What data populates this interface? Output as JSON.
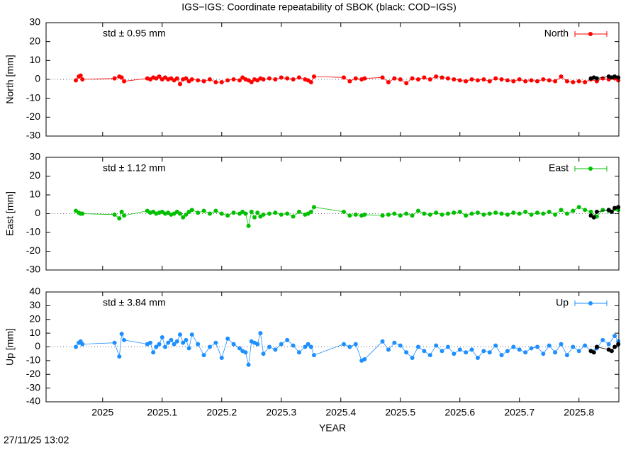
{
  "title": "IGS−IGS: Coordinate repeatability of SBOK (black: COD−IGS)",
  "footer": "27/11/25 13:02",
  "chart_data": [
    {
      "type": "line",
      "ylabel": "North [mm]",
      "annotation": "std ± 0.95 mm",
      "xlim": [
        2024.905,
        2025.867
      ],
      "xticks": [
        2025,
        2025.1,
        2025.2,
        2025.3,
        2025.4,
        2025.5,
        2025.6,
        2025.7,
        2025.8
      ],
      "ylim": [
        -30,
        30
      ],
      "yticks": [
        -30,
        -20,
        -10,
        0,
        10,
        20,
        30
      ],
      "series": [
        {
          "name": "North",
          "color": "#ff0000",
          "x": [
            2024.955,
            2024.96,
            2024.963,
            2024.966,
            2025.02,
            2025.028,
            2025.032,
            2025.036,
            2025.075,
            2025.08,
            2025.085,
            2025.09,
            2025.095,
            2025.1,
            2025.105,
            2025.11,
            2025.115,
            2025.12,
            2025.125,
            2025.13,
            2025.135,
            2025.14,
            2025.145,
            2025.15,
            2025.16,
            2025.17,
            2025.18,
            2025.19,
            2025.2,
            2025.21,
            2025.22,
            2025.23,
            2025.235,
            2025.24,
            2025.245,
            2025.25,
            2025.255,
            2025.26,
            2025.265,
            2025.27,
            2025.28,
            2025.29,
            2025.3,
            2025.31,
            2025.32,
            2025.33,
            2025.34,
            2025.345,
            2025.35,
            2025.355,
            2025.405,
            2025.415,
            2025.425,
            2025.435,
            2025.44,
            2025.47,
            2025.48,
            2025.49,
            2025.5,
            2025.51,
            2025.52,
            2025.53,
            2025.54,
            2025.55,
            2025.56,
            2025.57,
            2025.58,
            2025.59,
            2025.6,
            2025.61,
            2025.62,
            2025.63,
            2025.64,
            2025.65,
            2025.66,
            2025.67,
            2025.68,
            2025.69,
            2025.7,
            2025.71,
            2025.72,
            2025.73,
            2025.74,
            2025.75,
            2025.76,
            2025.77,
            2025.78,
            2025.79,
            2025.8,
            2025.81,
            2025.82,
            2025.83,
            2025.84,
            2025.85,
            2025.86,
            2025.866
          ],
          "values": [
            -0.5,
            1.5,
            2,
            0,
            0.5,
            1.5,
            1,
            -1,
            0.5,
            0,
            1,
            0.5,
            1.5,
            0,
            1,
            0,
            0.5,
            -0.5,
            0.5,
            -2.5,
            0,
            0.5,
            -1,
            0,
            -0.5,
            -1,
            0,
            -1.5,
            -1.5,
            -0.5,
            0,
            -0.5,
            1,
            0,
            -0.5,
            -1.5,
            0,
            -0.5,
            0.5,
            0,
            0.5,
            0,
            1,
            0.5,
            0,
            1,
            0,
            -0.5,
            -1.5,
            1.5,
            1,
            -1,
            0.5,
            0,
            0.5,
            1,
            -1.5,
            0.5,
            0,
            -2,
            0.5,
            0,
            1,
            0,
            1.5,
            1,
            0.5,
            0,
            -0.5,
            -1,
            0,
            -0.5,
            0,
            -1,
            0.5,
            0,
            -0.5,
            -1,
            0,
            -1,
            -0.5,
            -1,
            0,
            -0.5,
            -1,
            1.5,
            -1,
            -1.5,
            -1,
            -1.5,
            0,
            -1,
            0.5,
            0,
            0.5,
            -0.5
          ]
        },
        {
          "color": "#000000",
          "x": [
            2025.82,
            2025.825,
            2025.83,
            2025.85,
            2025.855,
            2025.86,
            2025.866
          ],
          "values": [
            0.5,
            1,
            0.5,
            1.5,
            1,
            1.5,
            1
          ]
        }
      ]
    },
    {
      "type": "line",
      "ylabel": "East [mm]",
      "annotation": "std ± 1.12 mm",
      "xlim": [
        2024.905,
        2025.867
      ],
      "xticks": [
        2025,
        2025.1,
        2025.2,
        2025.3,
        2025.4,
        2025.5,
        2025.6,
        2025.7,
        2025.8
      ],
      "ylim": [
        -30,
        30
      ],
      "yticks": [
        -30,
        -20,
        -10,
        0,
        10,
        20,
        30
      ],
      "series": [
        {
          "name": "East",
          "color": "#00c000",
          "x": [
            2024.955,
            2024.96,
            2024.963,
            2024.966,
            2025.02,
            2025.028,
            2025.032,
            2025.036,
            2025.075,
            2025.08,
            2025.085,
            2025.09,
            2025.095,
            2025.1,
            2025.105,
            2025.11,
            2025.115,
            2025.12,
            2025.125,
            2025.13,
            2025.135,
            2025.14,
            2025.145,
            2025.15,
            2025.16,
            2025.17,
            2025.18,
            2025.19,
            2025.2,
            2025.21,
            2025.22,
            2025.23,
            2025.235,
            2025.24,
            2025.245,
            2025.25,
            2025.255,
            2025.26,
            2025.265,
            2025.27,
            2025.28,
            2025.29,
            2025.3,
            2025.31,
            2025.32,
            2025.33,
            2025.34,
            2025.345,
            2025.35,
            2025.355,
            2025.405,
            2025.415,
            2025.425,
            2025.435,
            2025.44,
            2025.47,
            2025.48,
            2025.49,
            2025.5,
            2025.51,
            2025.52,
            2025.53,
            2025.54,
            2025.55,
            2025.56,
            2025.57,
            2025.58,
            2025.59,
            2025.6,
            2025.61,
            2025.62,
            2025.63,
            2025.64,
            2025.65,
            2025.66,
            2025.67,
            2025.68,
            2025.69,
            2025.7,
            2025.71,
            2025.72,
            2025.73,
            2025.74,
            2025.75,
            2025.76,
            2025.77,
            2025.78,
            2025.79,
            2025.8,
            2025.81,
            2025.82,
            2025.83,
            2025.84,
            2025.85,
            2025.86,
            2025.866
          ],
          "values": [
            1.5,
            0.5,
            0,
            0,
            -0.5,
            -2.5,
            1,
            -1,
            1.5,
            0.5,
            1,
            0,
            0.5,
            1,
            0,
            0.5,
            -0.5,
            0,
            1,
            0,
            -2,
            -0.5,
            1,
            2,
            0.5,
            1.5,
            0,
            1.5,
            0,
            -1,
            0.5,
            0,
            1,
            0,
            -6.5,
            1,
            -2,
            0.5,
            -1.5,
            -0.5,
            0,
            0.5,
            -0.5,
            0,
            -1.5,
            1,
            -0.5,
            0,
            1,
            3.5,
            1,
            -1,
            -0.5,
            -1,
            -0.5,
            -1,
            -0.5,
            0,
            -1,
            0,
            -1,
            1.5,
            0,
            -0.5,
            0.5,
            -0.5,
            0,
            0.5,
            1,
            -1,
            0,
            0.5,
            -0.5,
            0,
            0.5,
            0,
            -0.5,
            0.5,
            0,
            1,
            -0.5,
            0.5,
            0,
            1,
            -0.5,
            2,
            0,
            1.5,
            3.5,
            2,
            1,
            -1.5,
            2,
            1.5,
            2.5,
            2
          ]
        },
        {
          "color": "#000000",
          "x": [
            2025.82,
            2025.825,
            2025.83,
            2025.85,
            2025.855,
            2025.86,
            2025.866
          ],
          "values": [
            -1,
            -2,
            1,
            2,
            1,
            3,
            3.5
          ]
        }
      ]
    },
    {
      "type": "line",
      "ylabel": "Up [mm]",
      "annotation": "std ± 3.84 mm",
      "xlabel": "YEAR",
      "xlim": [
        2024.905,
        2025.867
      ],
      "xticks": [
        2025,
        2025.1,
        2025.2,
        2025.3,
        2025.4,
        2025.5,
        2025.6,
        2025.7,
        2025.8
      ],
      "ylim": [
        -40,
        40
      ],
      "yticks": [
        -40,
        -30,
        -20,
        -10,
        0,
        10,
        20,
        30,
        40
      ],
      "series": [
        {
          "name": "Up",
          "color": "#1e8fff",
          "x": [
            2024.955,
            2024.96,
            2024.963,
            2024.966,
            2025.02,
            2025.028,
            2025.032,
            2025.036,
            2025.075,
            2025.08,
            2025.085,
            2025.09,
            2025.095,
            2025.1,
            2025.105,
            2025.11,
            2025.115,
            2025.12,
            2025.125,
            2025.13,
            2025.135,
            2025.14,
            2025.145,
            2025.15,
            2025.16,
            2025.17,
            2025.18,
            2025.19,
            2025.2,
            2025.21,
            2025.22,
            2025.23,
            2025.235,
            2025.24,
            2025.245,
            2025.25,
            2025.255,
            2025.26,
            2025.265,
            2025.27,
            2025.28,
            2025.29,
            2025.3,
            2025.31,
            2025.32,
            2025.33,
            2025.34,
            2025.345,
            2025.35,
            2025.355,
            2025.405,
            2025.415,
            2025.425,
            2025.435,
            2025.44,
            2025.47,
            2025.48,
            2025.49,
            2025.5,
            2025.51,
            2025.52,
            2025.53,
            2025.54,
            2025.55,
            2025.56,
            2025.57,
            2025.58,
            2025.59,
            2025.6,
            2025.61,
            2025.62,
            2025.63,
            2025.64,
            2025.65,
            2025.66,
            2025.67,
            2025.68,
            2025.69,
            2025.7,
            2025.71,
            2025.72,
            2025.73,
            2025.74,
            2025.75,
            2025.76,
            2025.77,
            2025.78,
            2025.79,
            2025.8,
            2025.81,
            2025.82,
            2025.83,
            2025.84,
            2025.85,
            2025.86,
            2025.866
          ],
          "values": [
            0,
            3,
            4,
            2,
            3,
            -7,
            9.5,
            5,
            2,
            3,
            -4,
            0,
            2,
            7,
            0,
            3,
            5,
            2,
            4,
            9,
            3,
            5,
            -1,
            9,
            2,
            -6,
            0,
            3,
            -8,
            6,
            2,
            -1,
            -3,
            -4,
            -13,
            4,
            3,
            2,
            10,
            -5,
            0,
            -2,
            2,
            5,
            1,
            -4,
            0,
            2,
            0,
            -6,
            2,
            0,
            2,
            -10,
            -9,
            4,
            -2,
            3,
            1,
            -4,
            -8,
            0,
            -3,
            -6,
            1,
            -3,
            0,
            -5,
            -2,
            -4,
            -2,
            -8,
            -3,
            -4,
            1,
            -6,
            -3,
            0,
            -2,
            -4,
            -1,
            0,
            -5,
            1,
            -4,
            2,
            -6,
            0,
            -3,
            1,
            -3,
            -1,
            5,
            2,
            8,
            4
          ]
        },
        {
          "color": "#000000",
          "x": [
            2025.82,
            2025.825,
            2025.83,
            2025.85,
            2025.855,
            2025.86,
            2025.866
          ],
          "values": [
            -3,
            -4,
            0,
            -2,
            -3,
            0,
            2
          ]
        }
      ]
    }
  ]
}
